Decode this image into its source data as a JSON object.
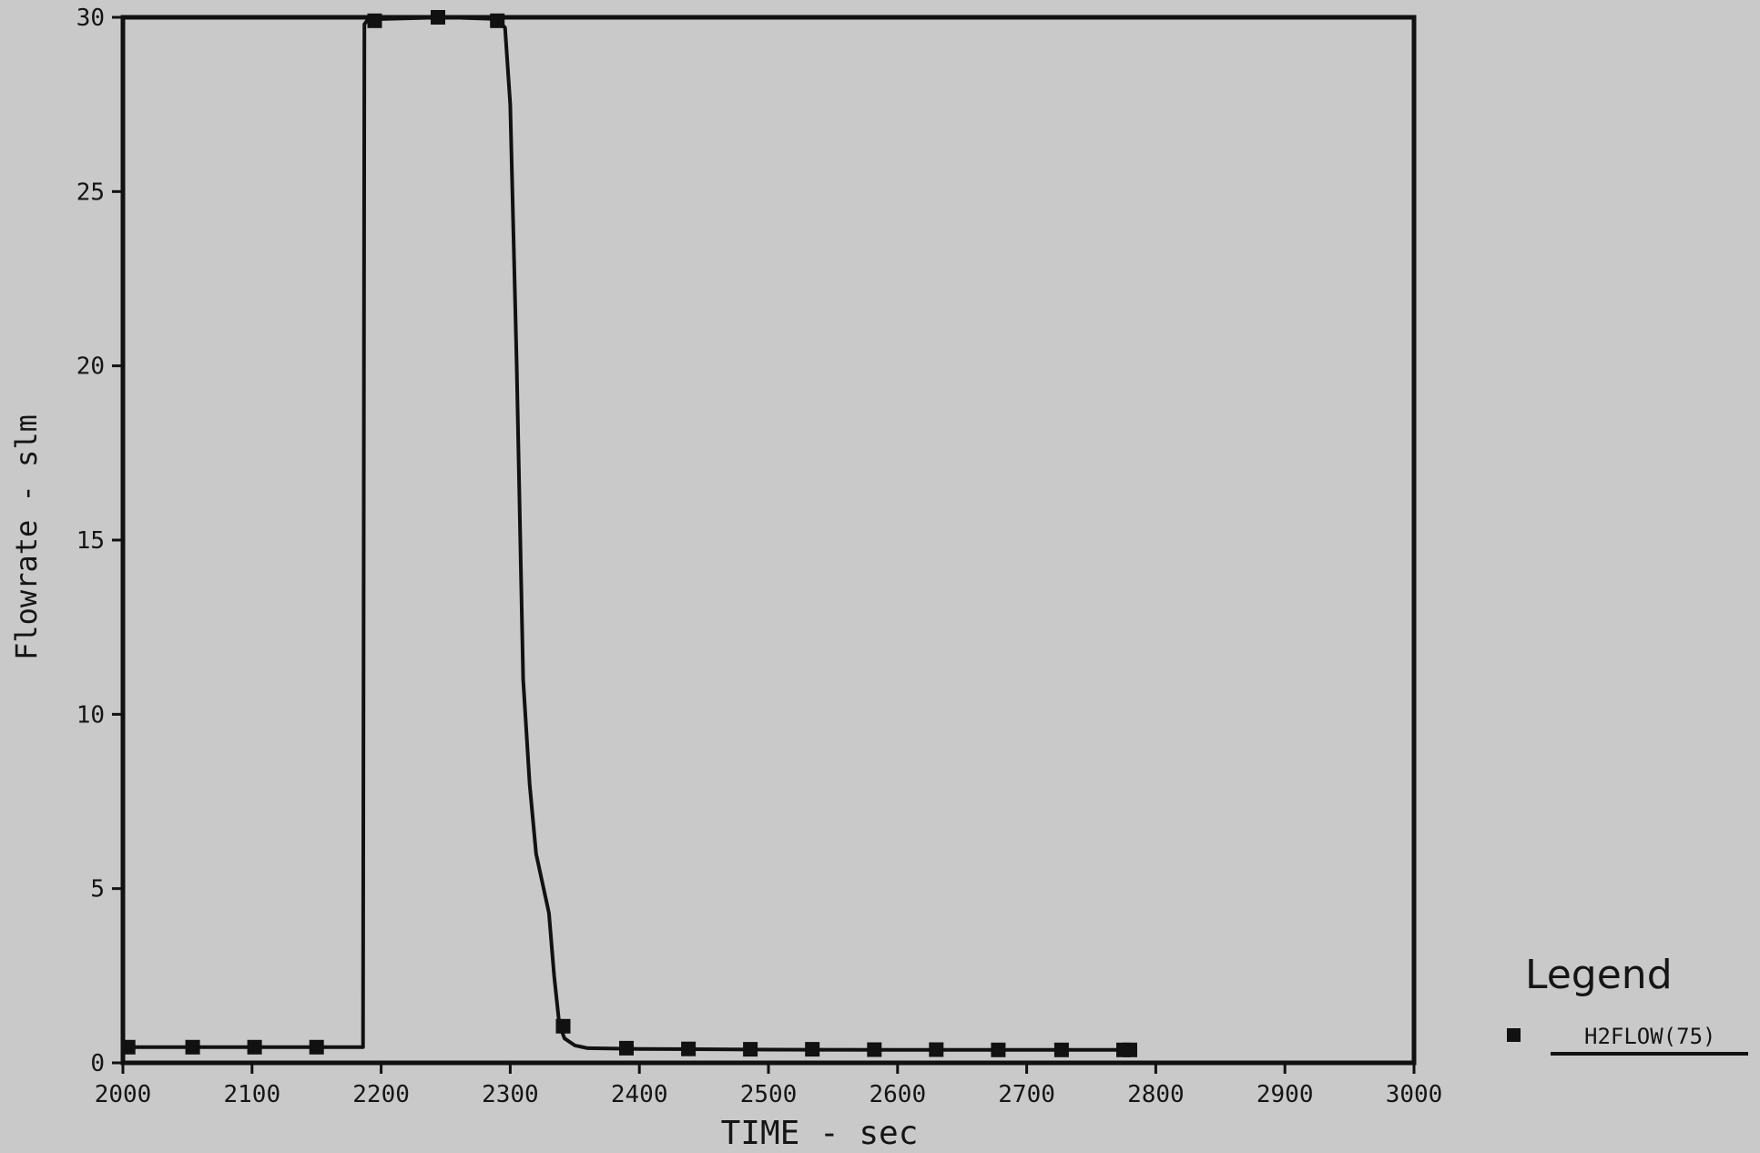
{
  "chart_data": {
    "type": "line",
    "xlabel": "TIME - sec",
    "ylabel": "Flowrate - slm",
    "xlim": [
      2000,
      3000
    ],
    "ylim": [
      0,
      30
    ],
    "xticks": [
      2000,
      2100,
      2200,
      2300,
      2400,
      2500,
      2600,
      2700,
      2800,
      2900,
      3000
    ],
    "yticks": [
      0,
      5,
      10,
      15,
      20,
      25,
      30
    ],
    "grid": false,
    "legend": {
      "title": "Legend",
      "placement": "right-bottom"
    },
    "series": [
      {
        "name": "H2FLOW(75)",
        "marker": "square",
        "color": "#111111",
        "x": [
          2000,
          2186,
          2187,
          2190,
          2200,
          2250,
          2290,
          2296,
          2300,
          2305,
          2310,
          2315,
          2320,
          2330,
          2334,
          2338,
          2342,
          2350,
          2360,
          2400,
          2500,
          2600,
          2700,
          2782
        ],
        "y": [
          0.45,
          0.45,
          29.8,
          29.95,
          29.95,
          30.0,
          29.95,
          29.7,
          27.5,
          20.0,
          11.0,
          8.0,
          6.0,
          4.3,
          2.5,
          1.1,
          0.7,
          0.5,
          0.42,
          0.4,
          0.38,
          0.37,
          0.37,
          0.37
        ],
        "markers_x": [
          2004,
          2054,
          2102,
          2150,
          2195,
          2244,
          2290,
          2341,
          2390,
          2438,
          2486,
          2534,
          2582,
          2630,
          2678,
          2727,
          2775,
          2780
        ],
        "markers_y": [
          0.45,
          0.45,
          0.45,
          0.45,
          29.9,
          30.0,
          29.9,
          1.05,
          0.42,
          0.4,
          0.39,
          0.39,
          0.38,
          0.38,
          0.37,
          0.37,
          0.37,
          0.37
        ]
      }
    ]
  }
}
